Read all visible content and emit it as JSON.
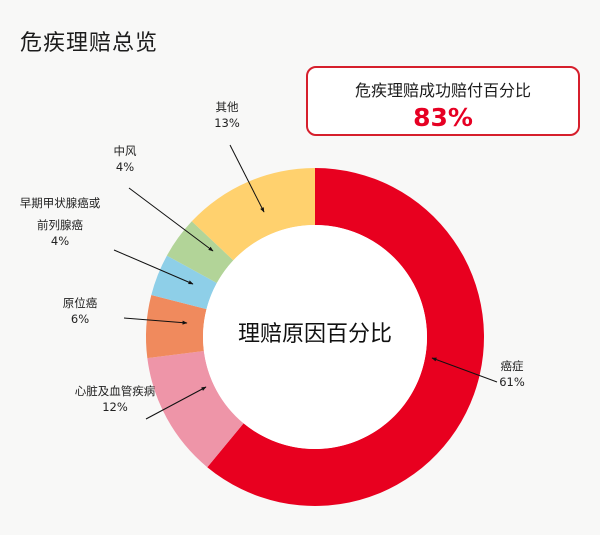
{
  "page": {
    "title": "危疾理赔总览"
  },
  "kpi": {
    "label": "危疾理赔成功赔付百分比",
    "value": "83%",
    "accent_color": "#e60023"
  },
  "chart_data": {
    "type": "pie",
    "subtype": "donut",
    "title": "理赔原因百分比",
    "center_label": "理赔原因百分比",
    "start_angle": "12 o'clock, clockwise",
    "categories": [
      "癌症",
      "心脏及血管疾病",
      "原位癌",
      "早期甲状腺癌或前列腺癌",
      "中风",
      "其他"
    ],
    "values": [
      61,
      12,
      6,
      4,
      4,
      13
    ],
    "unit": "%",
    "colors": [
      "#e8001f",
      "#ee95a8",
      "#f08a5d",
      "#8ecfe8",
      "#b2d498",
      "#ffd16e"
    ],
    "labels": [
      {
        "name": "癌症",
        "pct": "61%"
      },
      {
        "name": "心脏及血管疾病",
        "pct": "12%"
      },
      {
        "name": "原位癌",
        "pct": "6%"
      },
      {
        "name_line1": "早期甲状腺癌或",
        "name_line2": "前列腺癌",
        "pct": "4%"
      },
      {
        "name": "中风",
        "pct": "4%"
      },
      {
        "name": "其他",
        "pct": "13%"
      }
    ],
    "legend": "none (callout labels with arrows)"
  }
}
